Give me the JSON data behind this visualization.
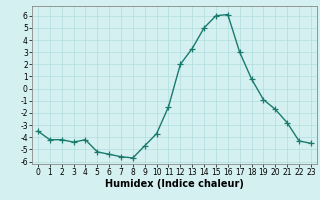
{
  "x": [
    0,
    1,
    2,
    3,
    4,
    5,
    6,
    7,
    8,
    9,
    10,
    11,
    12,
    13,
    14,
    15,
    16,
    17,
    18,
    19,
    20,
    21,
    22,
    23
  ],
  "y": [
    -3.5,
    -4.2,
    -4.2,
    -4.4,
    -4.2,
    -5.2,
    -5.4,
    -5.6,
    -5.7,
    -4.7,
    -3.7,
    -1.5,
    2.0,
    3.3,
    5.0,
    6.0,
    6.1,
    3.0,
    0.8,
    -0.9,
    -1.7,
    -2.8,
    -4.3,
    -4.5
  ],
  "color": "#1a7a6e",
  "bg_color": "#d5f0f0",
  "grid_color": "#b0dede",
  "xlabel": "Humidex (Indice chaleur)",
  "ylim": [
    -6.2,
    6.8
  ],
  "xlim": [
    -0.5,
    23.5
  ],
  "yticks": [
    -6,
    -5,
    -4,
    -3,
    -2,
    -1,
    0,
    1,
    2,
    3,
    4,
    5,
    6
  ],
  "xticks": [
    0,
    1,
    2,
    3,
    4,
    5,
    6,
    7,
    8,
    9,
    10,
    11,
    12,
    13,
    14,
    15,
    16,
    17,
    18,
    19,
    20,
    21,
    22,
    23
  ],
  "marker": "+",
  "markersize": 4,
  "linewidth": 1.0,
  "xlabel_fontsize": 7,
  "tick_fontsize": 5.5
}
